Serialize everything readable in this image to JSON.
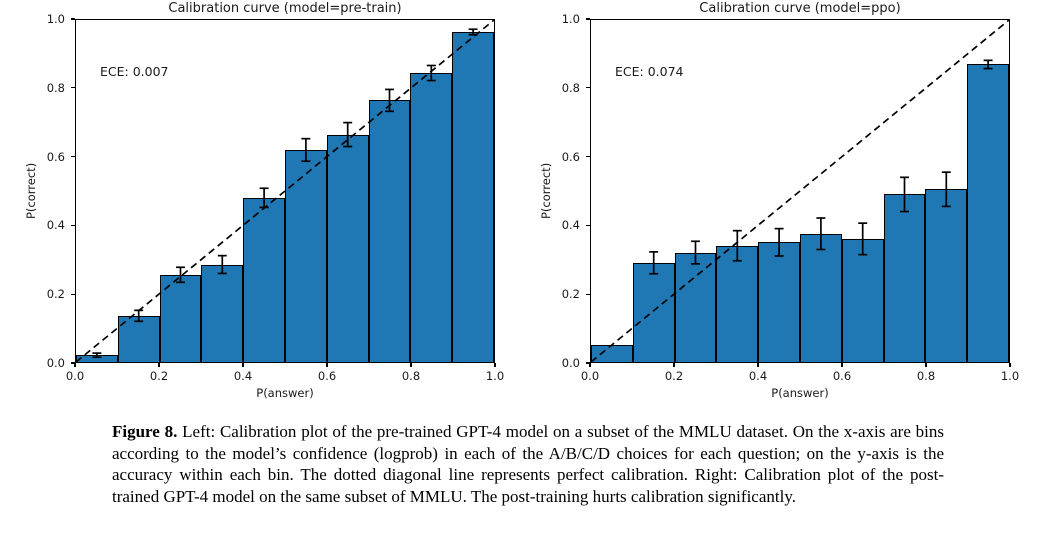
{
  "figure": {
    "caption_label": "Figure 8.",
    "caption_text": "Left: Calibration plot of the pre-trained GPT-4 model on a subset of the MMLU dataset. On the x-axis are bins according to the model’s confidence (logprob) in each of the A/B/C/D choices for each question; on the y-axis is the accuracy within each bin. The dotted diagonal line represents perfect calibration. Right: Calibration plot of the post-trained GPT-4 model on the same subset of MMLU. The post-training hurts calibration significantly."
  },
  "colors": {
    "bar_fill": "#1f77b4",
    "bar_edge": "#000000",
    "diagonal_line": "#000000",
    "error_bar": "#000000",
    "background": "#ffffff"
  },
  "chart_data": [
    {
      "type": "bar",
      "title": "Calibration curve (model=pre-train)",
      "annotation": "ECE: 0.007",
      "xlabel": "P(answer)",
      "ylabel": "P(correct)",
      "xlim": [
        0.0,
        1.0
      ],
      "ylim": [
        0.0,
        1.0
      ],
      "xticks": [
        0.0,
        0.2,
        0.4,
        0.6,
        0.8,
        1.0
      ],
      "yticks": [
        0.0,
        0.2,
        0.4,
        0.6,
        0.8,
        1.0
      ],
      "bin_edges": [
        0.0,
        0.1,
        0.2,
        0.3,
        0.4,
        0.5,
        0.6,
        0.7,
        0.8,
        0.9,
        1.0
      ],
      "values": [
        0.02,
        0.135,
        0.255,
        0.285,
        0.48,
        0.62,
        0.665,
        0.765,
        0.845,
        0.965
      ],
      "errors": [
        0.006,
        0.016,
        0.022,
        0.026,
        0.028,
        0.033,
        0.035,
        0.032,
        0.022,
        0.008
      ],
      "diagonal_line": "y=x dashed (perfect calibration)",
      "grid": false,
      "legend": "none"
    },
    {
      "type": "bar",
      "title": "Calibration curve (model=ppo)",
      "annotation": "ECE: 0.074",
      "xlabel": "P(answer)",
      "ylabel": "P(correct)",
      "xlim": [
        0.0,
        1.0
      ],
      "ylim": [
        0.0,
        1.0
      ],
      "xticks": [
        0.0,
        0.2,
        0.4,
        0.6,
        0.8,
        1.0
      ],
      "yticks": [
        0.0,
        0.2,
        0.4,
        0.6,
        0.8,
        1.0
      ],
      "bin_edges": [
        0.0,
        0.1,
        0.2,
        0.3,
        0.4,
        0.5,
        0.6,
        0.7,
        0.8,
        0.9,
        1.0
      ],
      "values": [
        0.05,
        0.29,
        0.32,
        0.34,
        0.35,
        0.375,
        0.36,
        0.49,
        0.505,
        0.87
      ],
      "errors": [
        0,
        0.032,
        0.033,
        0.044,
        0.04,
        0.046,
        0.046,
        0.05,
        0.05,
        0.012
      ],
      "diagonal_line": "y=x dashed (perfect calibration)",
      "grid": false,
      "legend": "none"
    }
  ]
}
